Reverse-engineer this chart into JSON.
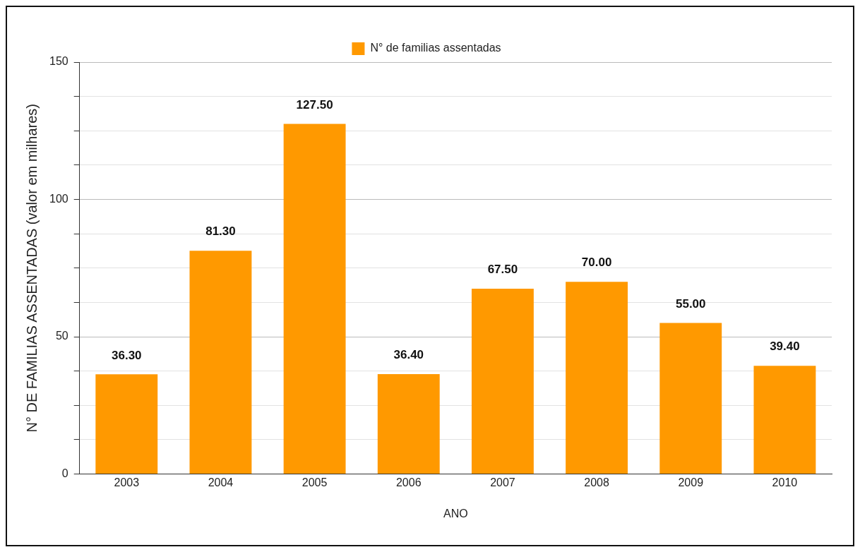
{
  "chart_data": {
    "type": "bar",
    "xlabel": "ANO",
    "ylabel": "N° DE FAMILIAS ASSENTADAS (valor em milhares)",
    "categories": [
      "2003",
      "2004",
      "2005",
      "2006",
      "2007",
      "2008",
      "2009",
      "2010"
    ],
    "series": [
      {
        "name": "N° de familias assentadas",
        "color": "#ff9900",
        "values": [
          36.3,
          81.3,
          127.5,
          36.4,
          67.5,
          70,
          55,
          39.4
        ],
        "value_labels": [
          "36.30",
          "81.30",
          "127.50",
          "36.40",
          "67.50",
          "70.00",
          "55.00",
          "39.40"
        ]
      }
    ],
    "ylim": [
      0,
      150
    ],
    "yticks": [
      0,
      {
        "value": 12.5,
        "label": null
      },
      {
        "value": 25,
        "label": null
      },
      {
        "value": 37.5,
        "label": null
      },
      50,
      {
        "value": 62.5,
        "label": null
      },
      {
        "value": 75,
        "label": null
      },
      {
        "value": 87.5,
        "label": null
      },
      100,
      {
        "value": 112.5,
        "label": null
      },
      {
        "value": 125,
        "label": null
      },
      {
        "value": 137.5,
        "label": null
      },
      150
    ],
    "grid": "y",
    "legend": "top"
  }
}
